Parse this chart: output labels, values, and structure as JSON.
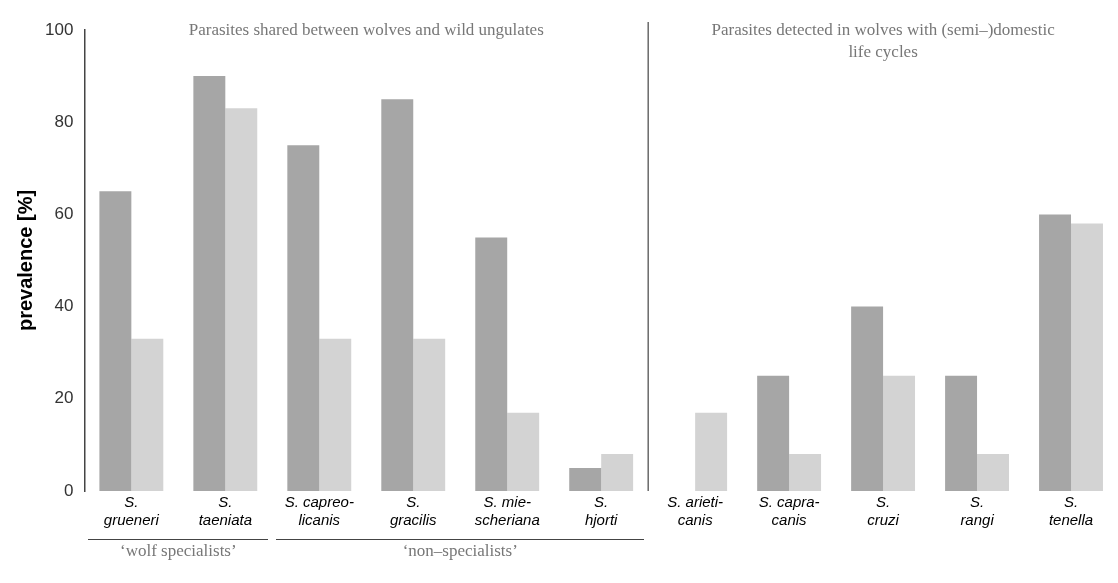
{
  "chart_data": {
    "type": "bar",
    "ylabel": "prevalence [%]",
    "categories": [
      "S.\ngrueneri",
      "S.\ntaeniata",
      "S. capreo-\nlicanis",
      "S.\ngracilis",
      "S. mie-\nscheriana",
      "S.\nhjorti",
      "S. arieti-\ncanis",
      "S. capra-\ncanis",
      "S.\ncruzi",
      "S.\nrangi",
      "S.\ntenella"
    ],
    "series": [
      {
        "color": "#a6a6a6",
        "values": [
          65,
          90,
          75,
          85,
          55,
          5,
          0,
          25,
          40,
          25,
          60
        ]
      },
      {
        "color": "#d3d3d3",
        "values": [
          33,
          83,
          33,
          33,
          17,
          8,
          17,
          8,
          25,
          8,
          58
        ]
      }
    ],
    "ylim": [
      0,
      100
    ],
    "yticks": [
      0,
      20,
      40,
      60,
      80,
      100
    ],
    "annotations": [
      "Parasites shared between wolves and wild ungulates",
      "Parasites detected in wolves with (semi–)domestic life cycles",
      "‘wolf specialists’",
      "‘non–specialists’"
    ]
  }
}
